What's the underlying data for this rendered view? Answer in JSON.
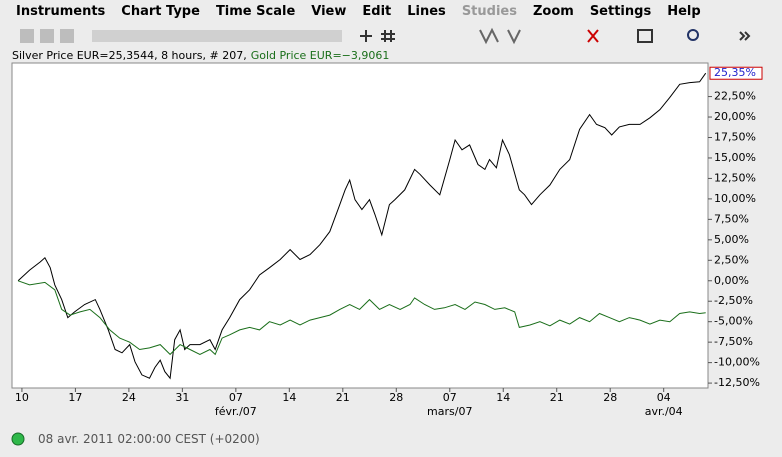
{
  "menu": [
    "Instruments",
    "Chart Type",
    "Time Scale",
    "View",
    "Edit",
    "Lines",
    "Studies",
    "Zoom",
    "Settings",
    "Help"
  ],
  "status": "08 avr. 2011 02:00:00  CEST (+0200)",
  "chart_data": {
    "type": "line",
    "current_label": "25,35%",
    "xlim": [
      -1.3,
      89.8
    ],
    "ylim": [
      -13.1,
      26.6
    ],
    "xticks": [
      {
        "value": 0,
        "label": "10"
      },
      {
        "value": 7,
        "label": "17"
      },
      {
        "value": 14,
        "label": "24"
      },
      {
        "value": 21,
        "label": "31"
      },
      {
        "value": 28,
        "label": "07"
      },
      {
        "value": 35,
        "label": "14"
      },
      {
        "value": 42,
        "label": "21"
      },
      {
        "value": 49,
        "label": "28"
      },
      {
        "value": 56,
        "label": "07"
      },
      {
        "value": 63,
        "label": "14"
      },
      {
        "value": 70,
        "label": "21"
      },
      {
        "value": 77,
        "label": "28"
      },
      {
        "value": 84,
        "label": "04"
      }
    ],
    "x_month_labels": [
      {
        "value": 28,
        "label": "févr./07"
      },
      {
        "value": 56,
        "label": "mars/07"
      },
      {
        "value": 84,
        "label": "avr./04"
      }
    ],
    "yticks": [
      {
        "value": 22.5,
        "label": "22,50%"
      },
      {
        "value": 20,
        "label": "20,00%"
      },
      {
        "value": 17.5,
        "label": "17,50%"
      },
      {
        "value": 15,
        "label": "15,00%"
      },
      {
        "value": 12.5,
        "label": "12,50%"
      },
      {
        "value": 10,
        "label": "10,00%"
      },
      {
        "value": 7.5,
        "label": "7,50%"
      },
      {
        "value": 5,
        "label": "5,00%"
      },
      {
        "value": 2.5,
        "label": "2,50%"
      },
      {
        "value": 0,
        "label": "0,00%"
      },
      {
        "value": -2.5,
        "label": "-2,50%"
      },
      {
        "value": -5,
        "label": "-5,00%"
      },
      {
        "value": -7.5,
        "label": "-7,50%"
      },
      {
        "value": -10,
        "label": "-10,00%"
      },
      {
        "value": -12.5,
        "label": "-12,50%"
      }
    ],
    "series": [
      {
        "name": "Silver Price EUR=25,3544, 8 hours, # 207,",
        "color": "#000000",
        "x": [
          -0.5,
          1.0,
          2.4,
          3.0,
          3.7,
          4.3,
          5.2,
          6.0,
          6.9,
          8.2,
          9.6,
          10.2,
          11.3,
          12.2,
          13.1,
          14.1,
          14.8,
          15.7,
          16.7,
          17.4,
          18.1,
          18.7,
          19.4,
          20.0,
          20.7,
          21.3,
          22.0,
          23.3,
          24.6,
          25.3,
          26.2,
          27.2,
          28.5,
          29.8,
          31.1,
          32.4,
          33.8,
          35.1,
          36.4,
          37.7,
          39.0,
          40.3,
          41.6,
          42.3,
          42.9,
          43.6,
          44.5,
          45.5,
          46.2,
          47.1,
          48.1,
          48.8,
          50.1,
          51.4,
          52.1,
          53.4,
          54.7,
          56.0,
          56.7,
          57.6,
          58.6,
          59.7,
          60.6,
          61.2,
          62.1,
          62.9,
          63.8,
          65.1,
          65.8,
          66.7,
          67.8,
          69.1,
          70.4,
          71.7,
          73.0,
          74.3,
          75.2,
          76.3,
          77.2,
          78.2,
          79.5,
          80.9,
          82.2,
          83.5,
          84.8,
          86.1,
          87.4,
          88.7,
          89.5
        ],
        "values": [
          0,
          1.3,
          2.3,
          2.8,
          1.6,
          -0.5,
          -2.3,
          -4.5,
          -3.8,
          -2.9,
          -2.3,
          -3.5,
          -6.0,
          -8.4,
          -8.8,
          -7.8,
          -9.9,
          -11.5,
          -11.9,
          -10.6,
          -9.7,
          -11.1,
          -11.9,
          -7.2,
          -6.0,
          -8.4,
          -7.8,
          -7.8,
          -7.2,
          -8.4,
          -6.0,
          -4.5,
          -2.3,
          -1.1,
          0.7,
          1.6,
          2.6,
          3.8,
          2.6,
          3.2,
          4.4,
          6.0,
          9.3,
          11.1,
          12.3,
          9.9,
          8.7,
          9.9,
          8.1,
          5.6,
          9.3,
          9.9,
          11.1,
          13.6,
          13.0,
          11.7,
          10.5,
          14.8,
          17.2,
          16.0,
          16.6,
          14.2,
          13.6,
          14.8,
          13.8,
          17.2,
          15.4,
          11.1,
          10.5,
          9.3,
          10.5,
          11.7,
          13.6,
          14.8,
          18.5,
          20.3,
          19.1,
          18.7,
          17.8,
          18.8,
          19.1,
          19.1,
          19.9,
          20.9,
          22.4,
          24.0,
          24.2,
          24.3,
          25.35
        ]
      },
      {
        "name": "Gold Price EUR=−3,9061",
        "color": "#1a6e1a",
        "x": [
          -0.5,
          1.0,
          3.0,
          4.3,
          5.2,
          6.3,
          7.6,
          8.9,
          10.2,
          11.5,
          12.8,
          14.1,
          15.4,
          16.7,
          18.1,
          19.4,
          20.7,
          22.0,
          23.3,
          24.6,
          25.3,
          26.2,
          27.2,
          28.5,
          29.8,
          31.1,
          32.4,
          33.8,
          35.1,
          36.4,
          37.7,
          39.0,
          40.3,
          41.6,
          42.9,
          44.2,
          45.5,
          46.8,
          48.1,
          49.5,
          50.8,
          51.4,
          52.7,
          54.0,
          55.3,
          56.7,
          58.0,
          59.3,
          60.6,
          61.9,
          63.2,
          64.5,
          65.1,
          66.5,
          67.8,
          69.1,
          70.4,
          71.7,
          73.0,
          74.3,
          75.6,
          76.9,
          78.2,
          79.5,
          80.9,
          82.2,
          83.5,
          84.8,
          86.1,
          87.4,
          88.7,
          89.5
        ],
        "values": [
          0,
          -0.5,
          -0.2,
          -1.1,
          -3.5,
          -4.2,
          -3.8,
          -3.5,
          -4.5,
          -6.0,
          -7.0,
          -7.5,
          -8.4,
          -8.2,
          -7.8,
          -9.0,
          -7.8,
          -8.4,
          -9.0,
          -8.4,
          -9.0,
          -7.0,
          -6.6,
          -6.0,
          -5.7,
          -6.0,
          -5.0,
          -5.4,
          -4.8,
          -5.4,
          -4.8,
          -4.5,
          -4.2,
          -3.5,
          -2.9,
          -3.5,
          -2.3,
          -3.5,
          -2.9,
          -3.5,
          -2.9,
          -2.1,
          -2.9,
          -3.5,
          -3.3,
          -2.9,
          -3.5,
          -2.6,
          -2.9,
          -3.5,
          -3.3,
          -3.8,
          -5.7,
          -5.4,
          -5.0,
          -5.5,
          -4.8,
          -5.3,
          -4.5,
          -5.0,
          -4.0,
          -4.5,
          -5.0,
          -4.5,
          -4.8,
          -5.3,
          -4.8,
          -5.0,
          -4.0,
          -3.8,
          -4.0,
          -3.9
        ]
      }
    ]
  }
}
